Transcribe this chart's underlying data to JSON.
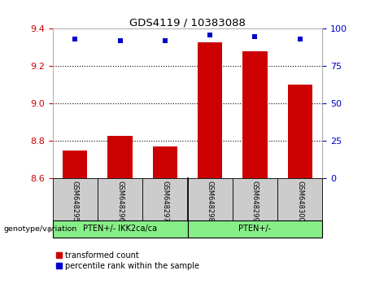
{
  "title": "GDS4119 / 10383088",
  "samples": [
    "GSM648295",
    "GSM648296",
    "GSM648297",
    "GSM648298",
    "GSM648299",
    "GSM648300"
  ],
  "bar_values": [
    8.75,
    8.83,
    8.77,
    9.33,
    9.28,
    9.1
  ],
  "percentile_values": [
    93,
    92,
    92,
    96,
    95,
    93
  ],
  "bar_bottom": 8.6,
  "ylim_left": [
    8.6,
    9.4
  ],
  "ylim_right": [
    0,
    100
  ],
  "yticks_left": [
    8.6,
    8.8,
    9.0,
    9.2,
    9.4
  ],
  "yticks_right": [
    0,
    25,
    50,
    75,
    100
  ],
  "bar_color": "#cc0000",
  "dot_color": "#0000cc",
  "group1_label": "PTEN+/- IKK2ca/ca",
  "group2_label": "PTEN+/-",
  "group_bg_gray": "#cccccc",
  "group_bg_green": "#88ee88",
  "xlabel_area": "genotype/variation",
  "legend_red": "transformed count",
  "legend_blue": "percentile rank within the sample",
  "plot_bg": "#ffffff"
}
